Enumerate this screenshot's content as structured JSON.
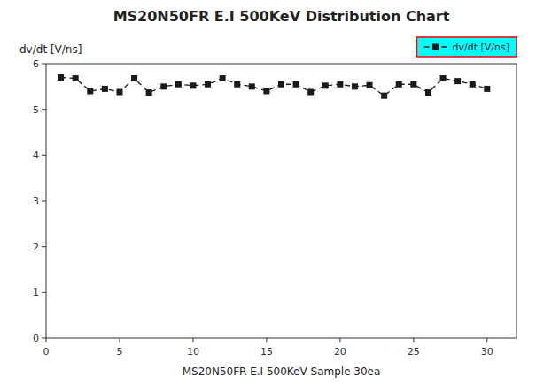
{
  "chart_data": {
    "type": "line",
    "title": "MS20N50FR E.I 500KeV Distribution Chart",
    "xlabel": "MS20N50FR E.I 500KeV Sample 30ea",
    "ylabel": "dv/dt [V/ns]",
    "x": [
      1,
      2,
      3,
      4,
      5,
      6,
      7,
      8,
      9,
      10,
      11,
      12,
      13,
      14,
      15,
      16,
      17,
      18,
      19,
      20,
      21,
      22,
      23,
      24,
      25,
      26,
      27,
      28,
      29,
      30
    ],
    "series": [
      {
        "name": "dv/dt [V/ns]",
        "color": "#1a1a1a",
        "marker": "square",
        "line_style": "dashed",
        "values": [
          5.7,
          5.68,
          5.4,
          5.45,
          5.38,
          5.68,
          5.37,
          5.5,
          5.55,
          5.52,
          5.55,
          5.68,
          5.55,
          5.5,
          5.4,
          5.55,
          5.55,
          5.38,
          5.52,
          5.55,
          5.5,
          5.53,
          5.3,
          5.55,
          5.55,
          5.37,
          5.68,
          5.62,
          5.55,
          5.45
        ]
      }
    ],
    "xlim": [
      0,
      32
    ],
    "ylim": [
      0,
      6.0
    ],
    "xticks": [
      0,
      5,
      10,
      15,
      20,
      25,
      30
    ],
    "yticks": [
      0,
      1,
      2,
      3,
      4,
      5,
      6
    ],
    "grid": false,
    "legend": "upper right"
  }
}
